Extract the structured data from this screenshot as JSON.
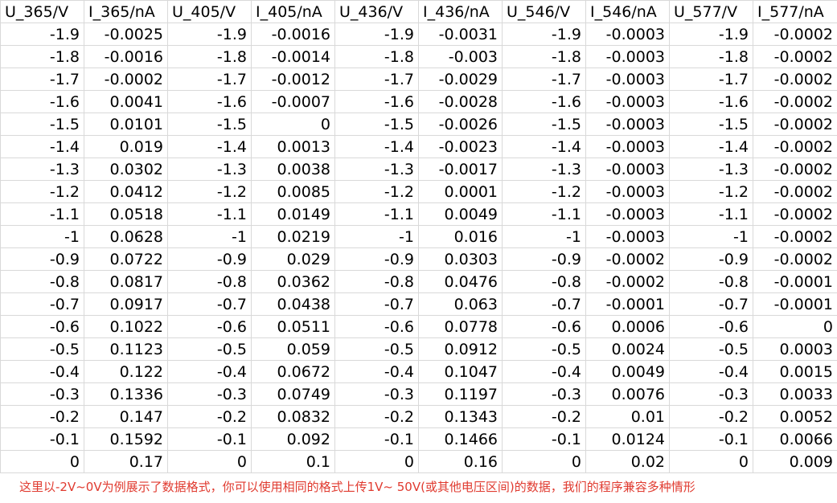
{
  "columns": [
    "U_365/V",
    "I_365/nA",
    "U_405/V",
    "I_405/nA",
    "U_436/V",
    "I_436/nA",
    "U_546/V",
    "I_546/nA",
    "U_577/V",
    "I_577/nA"
  ],
  "rows": [
    [
      "-1.9",
      "-0.0025",
      "-1.9",
      "-0.0016",
      "-1.9",
      "-0.0031",
      "-1.9",
      "-0.0003",
      "-1.9",
      "-0.0002"
    ],
    [
      "-1.8",
      "-0.0016",
      "-1.8",
      "-0.0014",
      "-1.8",
      "-0.003",
      "-1.8",
      "-0.0003",
      "-1.8",
      "-0.0002"
    ],
    [
      "-1.7",
      "-0.0002",
      "-1.7",
      "-0.0012",
      "-1.7",
      "-0.0029",
      "-1.7",
      "-0.0003",
      "-1.7",
      "-0.0002"
    ],
    [
      "-1.6",
      "0.0041",
      "-1.6",
      "-0.0007",
      "-1.6",
      "-0.0028",
      "-1.6",
      "-0.0003",
      "-1.6",
      "-0.0002"
    ],
    [
      "-1.5",
      "0.0101",
      "-1.5",
      "0",
      "-1.5",
      "-0.0026",
      "-1.5",
      "-0.0003",
      "-1.5",
      "-0.0002"
    ],
    [
      "-1.4",
      "0.019",
      "-1.4",
      "0.0013",
      "-1.4",
      "-0.0023",
      "-1.4",
      "-0.0003",
      "-1.4",
      "-0.0002"
    ],
    [
      "-1.3",
      "0.0302",
      "-1.3",
      "0.0038",
      "-1.3",
      "-0.0017",
      "-1.3",
      "-0.0003",
      "-1.3",
      "-0.0002"
    ],
    [
      "-1.2",
      "0.0412",
      "-1.2",
      "0.0085",
      "-1.2",
      "0.0001",
      "-1.2",
      "-0.0003",
      "-1.2",
      "-0.0002"
    ],
    [
      "-1.1",
      "0.0518",
      "-1.1",
      "0.0149",
      "-1.1",
      "0.0049",
      "-1.1",
      "-0.0003",
      "-1.1",
      "-0.0002"
    ],
    [
      "-1",
      "0.0628",
      "-1",
      "0.0219",
      "-1",
      "0.016",
      "-1",
      "-0.0003",
      "-1",
      "-0.0002"
    ],
    [
      "-0.9",
      "0.0722",
      "-0.9",
      "0.029",
      "-0.9",
      "0.0303",
      "-0.9",
      "-0.0002",
      "-0.9",
      "-0.0002"
    ],
    [
      "-0.8",
      "0.0817",
      "-0.8",
      "0.0362",
      "-0.8",
      "0.0476",
      "-0.8",
      "-0.0002",
      "-0.8",
      "-0.0001"
    ],
    [
      "-0.7",
      "0.0917",
      "-0.7",
      "0.0438",
      "-0.7",
      "0.063",
      "-0.7",
      "-0.0001",
      "-0.7",
      "-0.0001"
    ],
    [
      "-0.6",
      "0.1022",
      "-0.6",
      "0.0511",
      "-0.6",
      "0.0778",
      "-0.6",
      "0.0006",
      "-0.6",
      "0"
    ],
    [
      "-0.5",
      "0.1123",
      "-0.5",
      "0.059",
      "-0.5",
      "0.0912",
      "-0.5",
      "0.0024",
      "-0.5",
      "0.0003"
    ],
    [
      "-0.4",
      "0.122",
      "-0.4",
      "0.0672",
      "-0.4",
      "0.1047",
      "-0.4",
      "0.0049",
      "-0.4",
      "0.0015"
    ],
    [
      "-0.3",
      "0.1336",
      "-0.3",
      "0.0749",
      "-0.3",
      "0.1197",
      "-0.3",
      "0.0076",
      "-0.3",
      "0.0033"
    ],
    [
      "-0.2",
      "0.147",
      "-0.2",
      "0.0832",
      "-0.2",
      "0.1343",
      "-0.2",
      "0.01",
      "-0.2",
      "0.0052"
    ],
    [
      "-0.1",
      "0.1592",
      "-0.1",
      "0.092",
      "-0.1",
      "0.1466",
      "-0.1",
      "0.0124",
      "-0.1",
      "0.0066"
    ],
    [
      "0",
      "0.17",
      "0",
      "0.1",
      "0",
      "0.16",
      "0",
      "0.02",
      "0",
      "0.009"
    ]
  ],
  "note": "这里以-2V~0V为例展示了数据格式，你可以使用相同的格式上传1V~ 50V(或其他电压区间)的数据，我们的程序兼容多种情形",
  "colors": {
    "note": "#e03a2f",
    "grid": "#d9d9d9"
  }
}
